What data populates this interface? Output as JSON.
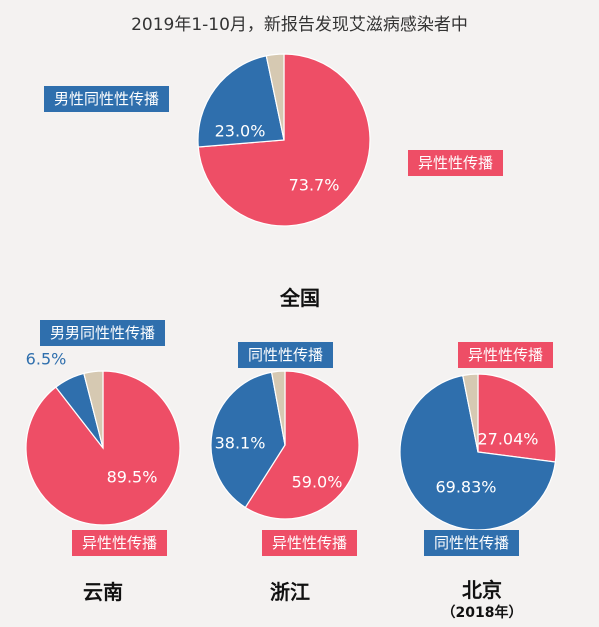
{
  "title": "2019年1-10月，新报告发现艾滋病感染者中",
  "colors": {
    "hetero": "#ee4e66",
    "homo": "#2f6fad",
    "other": "#d6c9b2"
  },
  "chart_data": [
    {
      "type": "pie",
      "name": "全国",
      "subtitle": "",
      "slices": [
        {
          "label": "异性性传播",
          "value": 73.7,
          "display": "73.7%",
          "kind": "hetero"
        },
        {
          "label": "男性同性性传播",
          "value": 23.0,
          "display": "23.0%",
          "kind": "homo"
        },
        {
          "label": "",
          "value": 3.3,
          "display": "",
          "kind": "other"
        }
      ]
    },
    {
      "type": "pie",
      "name": "云南",
      "subtitle": "",
      "slices": [
        {
          "label": "异性性传播",
          "value": 89.5,
          "display": "89.5%",
          "kind": "hetero"
        },
        {
          "label": "男男同性性传播",
          "value": 6.5,
          "display": "6.5%",
          "kind": "homo"
        },
        {
          "label": "",
          "value": 4.0,
          "display": "",
          "kind": "other"
        }
      ]
    },
    {
      "type": "pie",
      "name": "浙江",
      "subtitle": "",
      "slices": [
        {
          "label": "异性性传播",
          "value": 59.0,
          "display": "59.0%",
          "kind": "hetero"
        },
        {
          "label": "同性性传播",
          "value": 38.1,
          "display": "38.1%",
          "kind": "homo"
        },
        {
          "label": "",
          "value": 2.9,
          "display": "",
          "kind": "other"
        }
      ]
    },
    {
      "type": "pie",
      "name": "北京",
      "subtitle": "（2018年）",
      "slices": [
        {
          "label": "同性性传播",
          "value": 69.83,
          "display": "69.83%",
          "kind": "homo"
        },
        {
          "label": "异性性传播",
          "value": 27.04,
          "display": "27.04%",
          "kind": "hetero"
        },
        {
          "label": "",
          "value": 3.13,
          "display": "",
          "kind": "other"
        }
      ]
    }
  ]
}
